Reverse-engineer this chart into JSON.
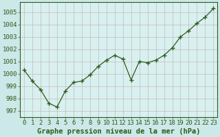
{
  "x": [
    0,
    1,
    2,
    3,
    4,
    5,
    6,
    7,
    8,
    9,
    10,
    11,
    12,
    13,
    14,
    15,
    16,
    17,
    18,
    19,
    20,
    21,
    22,
    23
  ],
  "y": [
    1000.3,
    999.4,
    998.7,
    997.6,
    997.3,
    998.6,
    999.3,
    999.4,
    999.9,
    1000.6,
    1001.1,
    1001.5,
    1001.2,
    999.5,
    1001.0,
    1000.9,
    1001.1,
    1001.5,
    1002.1,
    1003.0,
    1003.5,
    1004.1,
    1004.6,
    1005.3
  ],
  "line_color": "#2d5a1b",
  "marker": "+",
  "marker_size": 4,
  "bg_color": "#cce8e8",
  "plot_bg_color": "#d8f0f0",
  "grid_color": "#c8b8b8",
  "xlabel": "Graphe pression niveau de la mer (hPa)",
  "ylim": [
    996.5,
    1005.8
  ],
  "xlim": [
    -0.5,
    23.5
  ],
  "yticks": [
    997,
    998,
    999,
    1000,
    1001,
    1002,
    1003,
    1004,
    1005
  ],
  "xticks": [
    0,
    1,
    2,
    3,
    4,
    5,
    6,
    7,
    8,
    9,
    10,
    11,
    12,
    13,
    14,
    15,
    16,
    17,
    18,
    19,
    20,
    21,
    22,
    23
  ],
  "xlabel_fontsize": 7.5,
  "tick_fontsize": 6.5,
  "tick_color": "#2d5a1b"
}
